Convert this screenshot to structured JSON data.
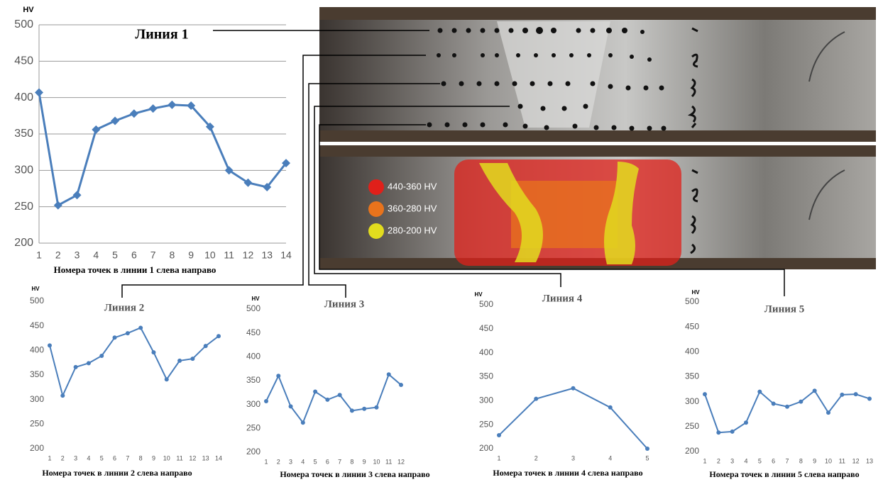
{
  "chart_data": [
    {
      "type": "line",
      "title": "Линия 1",
      "y_label": "HV",
      "x_label": "Номера точек в линии 1 слева направо",
      "categories": [
        "1",
        "2",
        "3",
        "4",
        "5",
        "6",
        "7",
        "8",
        "9",
        "10",
        "11",
        "12",
        "13",
        "14"
      ],
      "series": [
        {
          "name": "Линия 1",
          "color": "#4a7ebb",
          "values": [
            407,
            252,
            266,
            356,
            368,
            378,
            385,
            390,
            389,
            360,
            300,
            283,
            277,
            310
          ]
        }
      ],
      "ylim": [
        200,
        500
      ],
      "yticks": [
        200,
        250,
        300,
        350,
        400,
        450,
        500
      ],
      "grid": true,
      "marker": "diamond"
    },
    {
      "type": "line",
      "title": "Линия 2",
      "y_label": "HV",
      "x_label": "Номера точек в линии 2 слева направо",
      "categories": [
        "1",
        "2",
        "3",
        "4",
        "5",
        "6",
        "7",
        "8",
        "9",
        "10",
        "11",
        "12",
        "13",
        "14"
      ],
      "series": [
        {
          "name": "Линия 2",
          "color": "#4a7ebb",
          "values": [
            410,
            308,
            366,
            374,
            389,
            426,
            435,
            446,
            396,
            341,
            379,
            383,
            409,
            429
          ]
        }
      ],
      "ylim": [
        200,
        500
      ],
      "yticks": [
        200,
        250,
        300,
        350,
        400,
        450,
        500
      ],
      "grid": false,
      "marker": "circle"
    },
    {
      "type": "line",
      "title": "Линия 3",
      "y_label": "HV",
      "x_label": "Номера точек в линии 3 слева направо",
      "categories": [
        "1",
        "2",
        "3",
        "4",
        "5",
        "6",
        "7",
        "8",
        "9",
        "10",
        "11",
        "12"
      ],
      "series": [
        {
          "name": "Линия 3",
          "color": "#4a7ebb",
          "values": [
            307,
            360,
            296,
            262,
            327,
            310,
            320,
            287,
            291,
            294,
            363,
            341
          ]
        }
      ],
      "ylim": [
        200,
        500
      ],
      "yticks": [
        200,
        250,
        300,
        350,
        400,
        450,
        500
      ],
      "grid": false,
      "marker": "circle"
    },
    {
      "type": "line",
      "title": "Линия 4",
      "y_label": "HV",
      "x_label": "Номера точек в линии 4 слева направо",
      "categories": [
        "1",
        "2",
        "3",
        "4",
        "5"
      ],
      "series": [
        {
          "name": "Линия 4",
          "color": "#4a7ebb",
          "values": [
            228,
            304,
            326,
            286,
            200
          ]
        }
      ],
      "ylim": [
        200,
        500
      ],
      "yticks": [
        200,
        250,
        300,
        350,
        400,
        450,
        500
      ],
      "grid": false,
      "marker": "circle"
    },
    {
      "type": "line",
      "title": "Линия 5",
      "y_label": "HV",
      "x_label": "Номера точек в линии 5 слева направо",
      "categories": [
        "1",
        "2",
        "3",
        "4",
        "5",
        "6",
        "7",
        "8",
        "9",
        "10",
        "11",
        "12",
        "13"
      ],
      "series": [
        {
          "name": "Линия 5",
          "color": "#4a7ebb",
          "values": [
            315,
            238,
            240,
            258,
            320,
            296,
            290,
            300,
            322,
            278,
            314,
            315,
            306
          ]
        }
      ],
      "ylim": [
        200,
        500
      ],
      "yticks": [
        200,
        250,
        300,
        350,
        400,
        450,
        500
      ],
      "grid": false,
      "marker": "circle"
    }
  ],
  "heatmap_legend": [
    {
      "label": "440-360 HV",
      "color": "#e0201a"
    },
    {
      "label": "360-280 HV",
      "color": "#e8731c"
    },
    {
      "label": "280-200 HV",
      "color": "#e2dc1e"
    }
  ]
}
